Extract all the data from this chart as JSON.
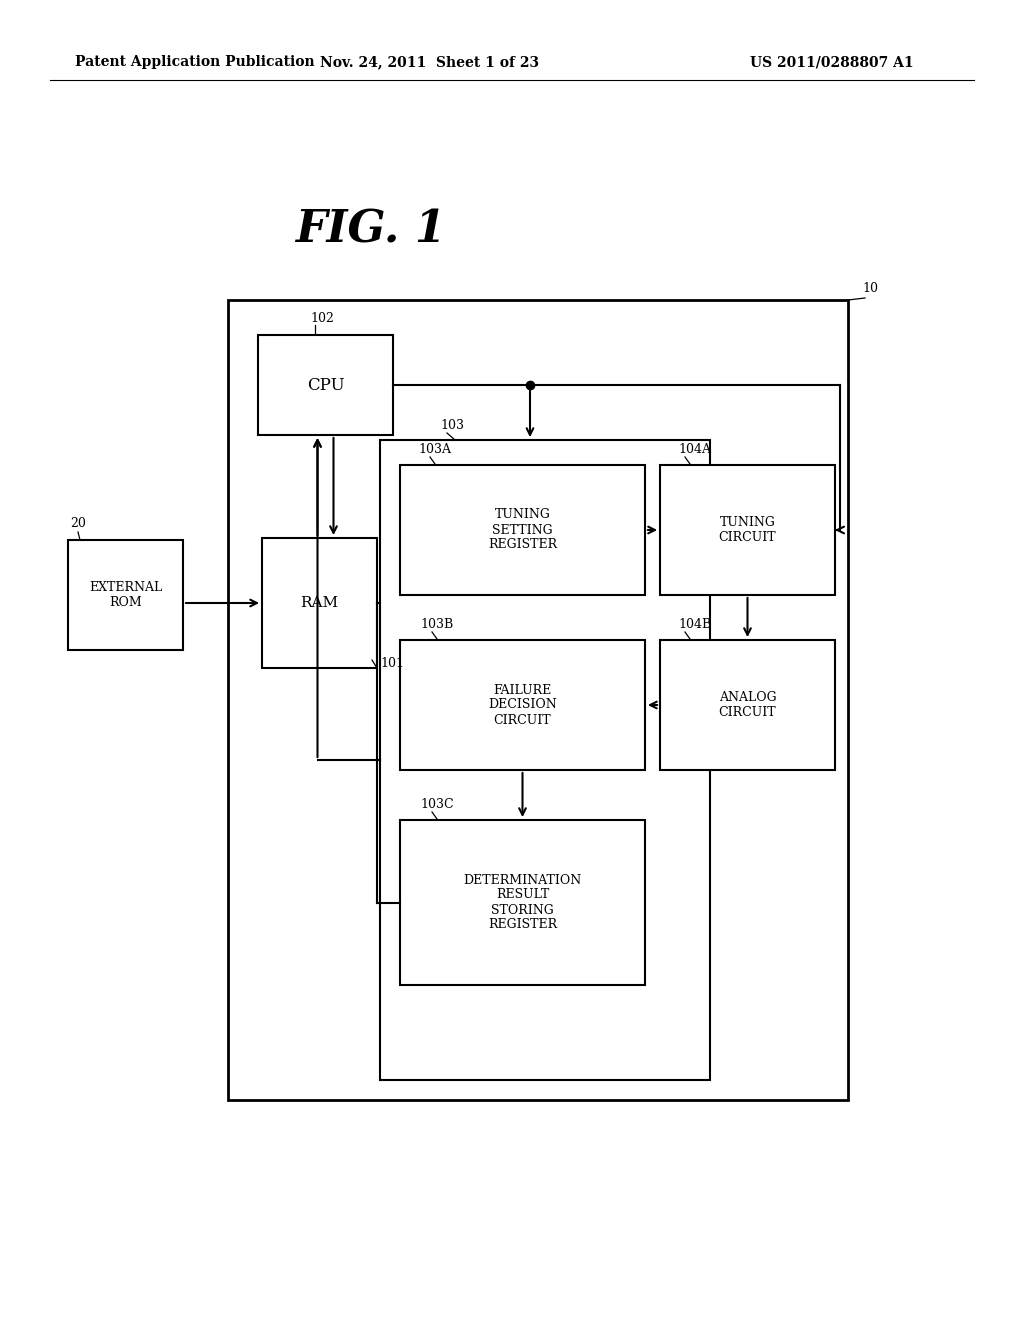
{
  "background_color": "#ffffff",
  "header_left": "Patent Application Publication",
  "header_center": "Nov. 24, 2011  Sheet 1 of 23",
  "header_right": "US 2011/0288807 A1",
  "fig_title": "FIG. 1",
  "text_color": "#000000",
  "line_color": "#000000",
  "lw": 1.5
}
